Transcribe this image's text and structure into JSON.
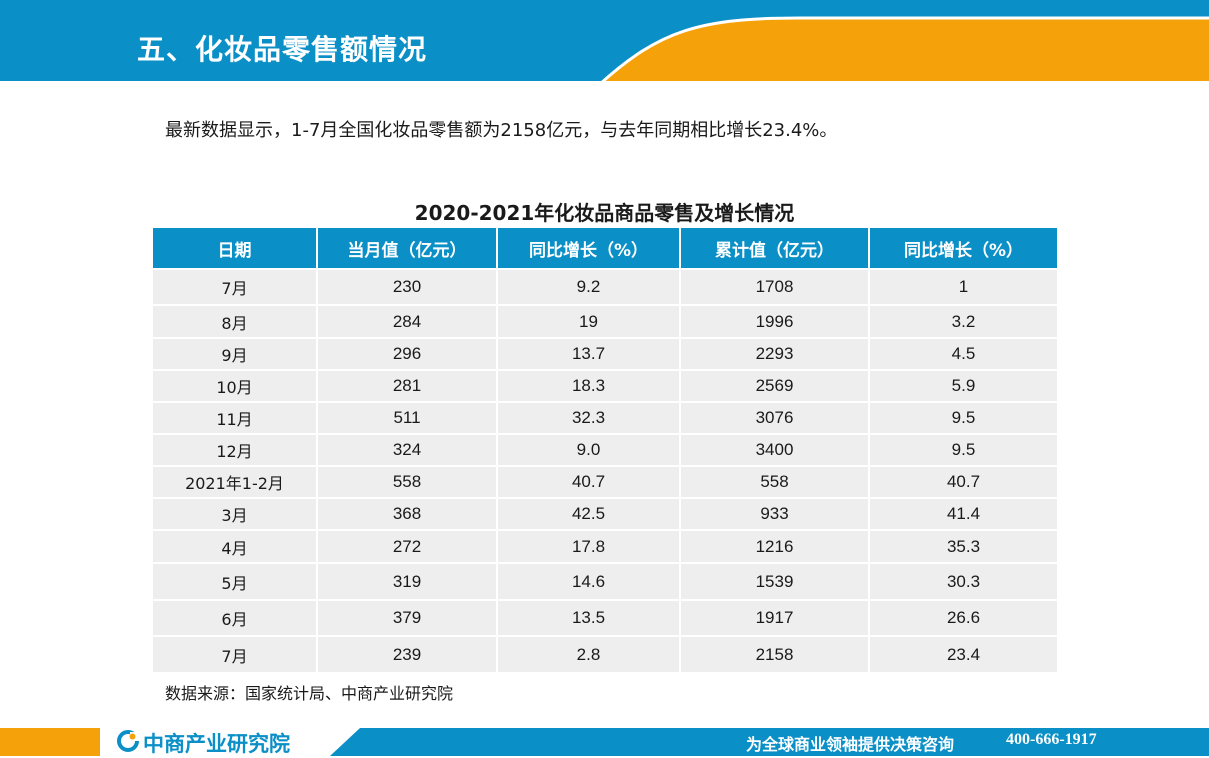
{
  "header": {
    "title": "五、化妆品零售额情况"
  },
  "summary": "最新数据显示，1-7月全国化妆品零售额为2158亿元，与去年同期相比增长23.4%。",
  "table": {
    "title": "2020-2021年化妆品商品零售及增长情况",
    "columns": [
      "日期",
      "当月值（亿元）",
      "同比增长（%）",
      "累计值（亿元）",
      "同比增长（%）"
    ],
    "rows": [
      [
        "7月",
        "230",
        "9.2",
        "1708",
        "1"
      ],
      [
        "8月",
        "284",
        "19",
        "1996",
        "3.2"
      ],
      [
        "9月",
        "296",
        "13.7",
        "2293",
        "4.5"
      ],
      [
        "10月",
        "281",
        "18.3",
        "2569",
        "5.9"
      ],
      [
        "11月",
        "511",
        "32.3",
        "3076",
        "9.5"
      ],
      [
        "12月",
        "324",
        "9.0",
        "3400",
        "9.5"
      ],
      [
        "2021年1-2月",
        "558",
        "40.7",
        "558",
        "40.7"
      ],
      [
        "3月",
        "368",
        "42.5",
        "933",
        "41.4"
      ],
      [
        "4月",
        "272",
        "17.8",
        "1216",
        "35.3"
      ],
      [
        "5月",
        "319",
        "14.6",
        "1539",
        "30.3"
      ],
      [
        "6月",
        "379",
        "13.5",
        "1917",
        "26.6"
      ],
      [
        "7月",
        "239",
        "2.8",
        "2158",
        "23.4"
      ]
    ]
  },
  "source": "数据来源：国家统计局、中商产业研究院",
  "footer": {
    "logo_text": "中商产业研究院",
    "slogan": "为全球商业领袖提供决策咨询",
    "phone": "400-666-1917"
  },
  "colors": {
    "brand_blue": "#0a8fc6",
    "brand_orange": "#f5a10a",
    "table_cell": "#eeeeee"
  }
}
